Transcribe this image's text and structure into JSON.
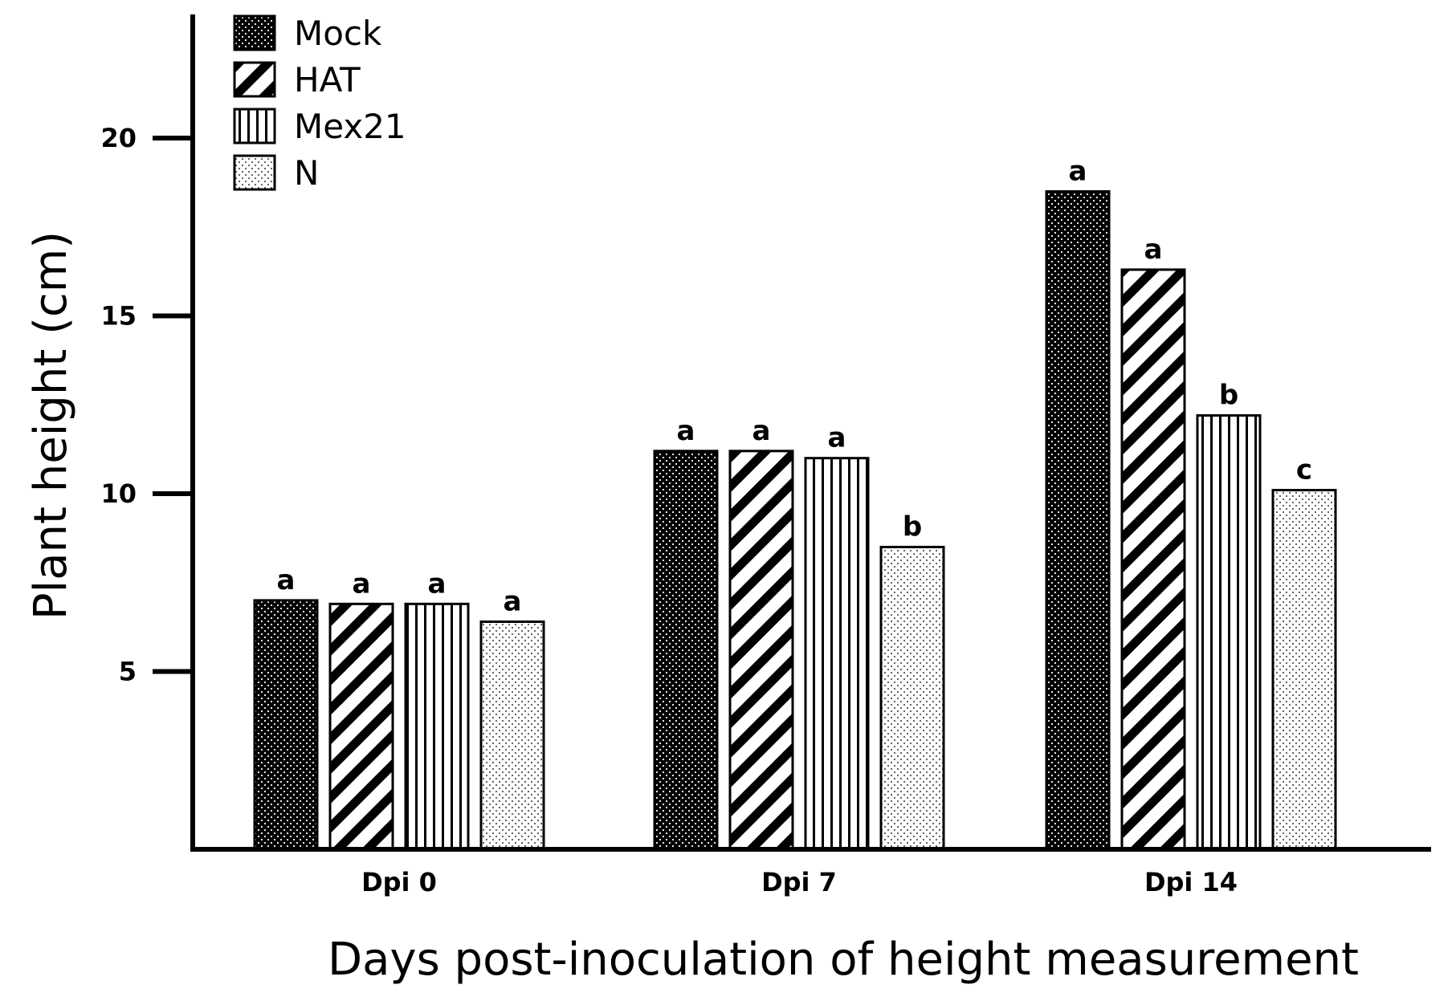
{
  "chart_data": {
    "type": "bar",
    "title": "",
    "xlabel": "Days post-inoculation of height measurement",
    "ylabel": "Plant height (cm)",
    "ylim": [
      0,
      23
    ],
    "yticks": [
      5,
      10,
      15,
      20
    ],
    "categories": [
      "Dpi 0",
      "Dpi 7",
      "Dpi 14"
    ],
    "legend_position": "top-left",
    "grid": false,
    "series": [
      {
        "name": "Mock",
        "pattern": "dense-dots",
        "values": [
          7.0,
          11.2,
          18.5
        ],
        "labels": [
          "a",
          "a",
          "a"
        ]
      },
      {
        "name": "HAT",
        "pattern": "diagonal-stripes",
        "values": [
          6.9,
          11.2,
          16.3
        ],
        "labels": [
          "a",
          "a",
          "a"
        ]
      },
      {
        "name": "Mex21",
        "pattern": "vertical-stripes",
        "values": [
          6.9,
          11.0,
          12.2
        ],
        "labels": [
          "a",
          "a",
          "b"
        ]
      },
      {
        "name": "N",
        "pattern": "light-dots",
        "values": [
          6.4,
          8.5,
          10.1
        ],
        "labels": [
          "a",
          "b",
          "c"
        ]
      }
    ]
  }
}
